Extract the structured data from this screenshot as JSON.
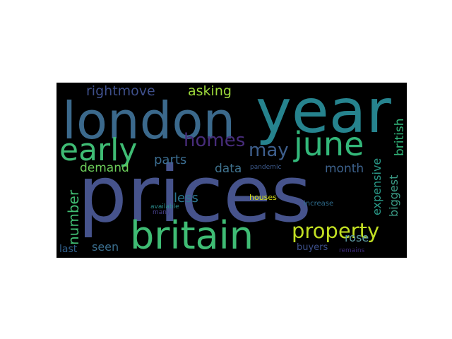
{
  "word_cloud": {
    "background": "#000000",
    "words": [
      {
        "text": "prices",
        "color": "#46538c"
      },
      {
        "text": "year",
        "color": "#26838e"
      },
      {
        "text": "london",
        "color": "#3b698c"
      },
      {
        "text": "britain",
        "color": "#3fbc74"
      },
      {
        "text": "june",
        "color": "#33b87a"
      },
      {
        "text": "early",
        "color": "#3fbc74"
      },
      {
        "text": "property",
        "color": "#c2df23"
      },
      {
        "text": "homes",
        "color": "#472c7a"
      },
      {
        "text": "may",
        "color": "#3e5f8d"
      },
      {
        "text": "number",
        "color": "#40bd72"
      },
      {
        "text": "rightmove",
        "color": "#3e4f8a"
      },
      {
        "text": "asking",
        "color": "#9dd93b"
      },
      {
        "text": "british",
        "color": "#32b67a"
      },
      {
        "text": "parts",
        "color": "#3a6b8e"
      },
      {
        "text": "demand",
        "color": "#6ccd5a"
      },
      {
        "text": "data",
        "color": "#3f728e"
      },
      {
        "text": "month",
        "color": "#3d628d"
      },
      {
        "text": "less",
        "color": "#2b758e"
      },
      {
        "text": "expensive",
        "color": "#2a9a89"
      },
      {
        "text": "biggest",
        "color": "#3b9a85"
      },
      {
        "text": "rose",
        "color": "#5e9aa1"
      },
      {
        "text": "seen",
        "color": "#3a6e8e"
      },
      {
        "text": "last",
        "color": "#32618e"
      },
      {
        "text": "buyers",
        "color": "#3c4f8a"
      },
      {
        "text": "houses",
        "color": "#d8e219"
      },
      {
        "text": "increase",
        "color": "#2f6d8e"
      },
      {
        "text": "pandemic",
        "color": "#3d5a8c"
      },
      {
        "text": "available",
        "color": "#2b8c8c"
      },
      {
        "text": "many",
        "color": "#47408a"
      },
      {
        "text": "remains",
        "color": "#3b2a78"
      }
    ]
  }
}
